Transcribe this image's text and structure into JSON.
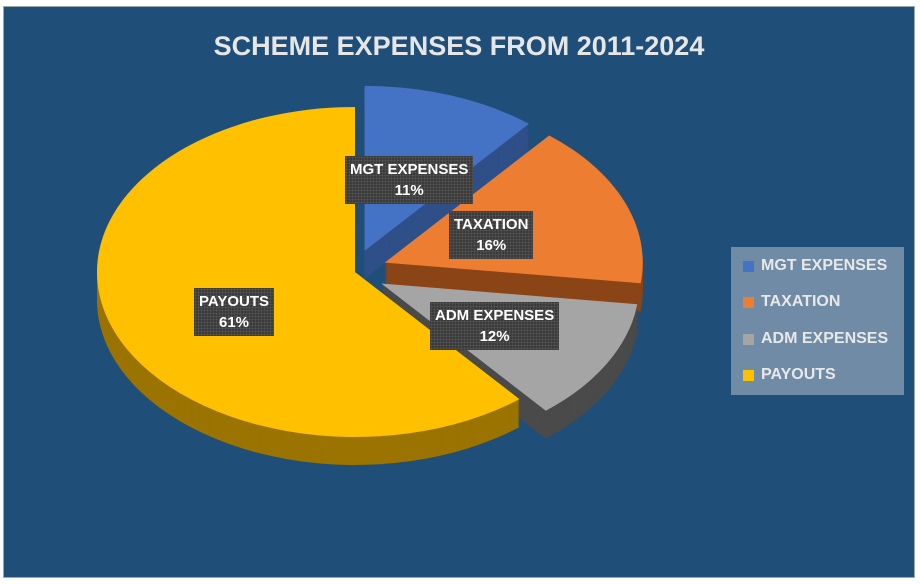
{
  "chart_data": {
    "type": "pie",
    "title": "SCHEME EXPENSES FROM 2011-2024",
    "legend_position": "right",
    "slices": [
      {
        "label": "MGT EXPENSES",
        "value": 11,
        "display": "11%",
        "color": "#4472c4",
        "side": "#2f4f88"
      },
      {
        "label": "TAXATION",
        "value": 16,
        "display": "16%",
        "color": "#ed7d31",
        "side": "#8a4416"
      },
      {
        "label": "ADM EXPENSES",
        "value": 12,
        "display": "12%",
        "color": "#a5a5a5",
        "side": "#4a4a4a"
      },
      {
        "label": "PAYOUTS",
        "value": 61,
        "display": "61%",
        "color": "#ffc000",
        "side": "#9a7300"
      }
    ]
  }
}
